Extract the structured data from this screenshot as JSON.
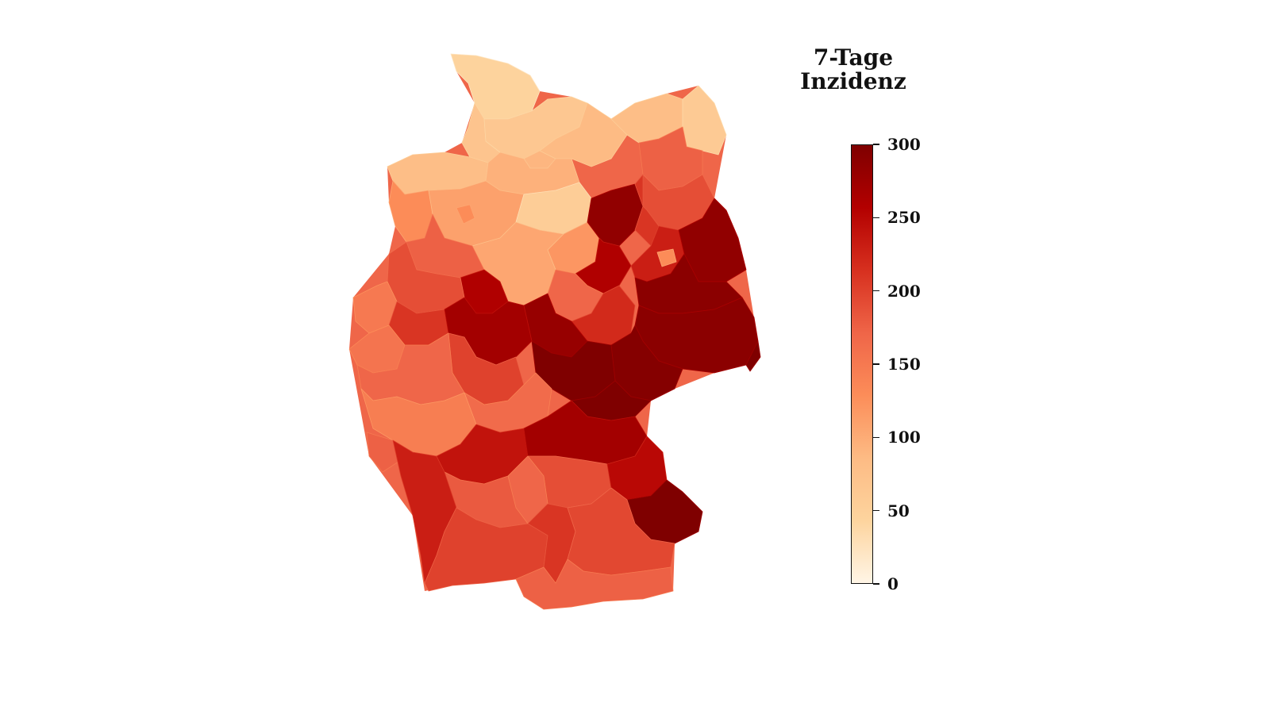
{
  "legend": {
    "title_line1": "7-Tage",
    "title_line2": "Inzidenz",
    "scale_min": 0,
    "scale_max": 300,
    "ticks": [
      {
        "value": 300,
        "label": "300"
      },
      {
        "value": 250,
        "label": "250"
      },
      {
        "value": 200,
        "label": "200"
      },
      {
        "value": 150,
        "label": "150"
      },
      {
        "value": 100,
        "label": "100"
      },
      {
        "value": 50,
        "label": "50"
      },
      {
        "value": 0,
        "label": "0"
      }
    ],
    "color_stops": [
      "#fff5e6",
      "#fdd49e",
      "#fdbb84",
      "#fc8d59",
      "#ef6548",
      "#d7301f",
      "#b30000",
      "#7f0000"
    ]
  },
  "map": {
    "regions": [
      {
        "id": "sh-north",
        "value": 45
      },
      {
        "id": "sh-west",
        "value": 70
      },
      {
        "id": "sh-east",
        "value": 65
      },
      {
        "id": "hamburg",
        "value": 90
      },
      {
        "id": "mv-west",
        "value": 85
      },
      {
        "id": "mv-central",
        "value": 80
      },
      {
        "id": "mv-east",
        "value": 60
      },
      {
        "id": "mv-south",
        "value": 175
      },
      {
        "id": "ni-coast",
        "value": 80
      },
      {
        "id": "ni-ems",
        "value": 130
      },
      {
        "id": "ni-north",
        "value": 95
      },
      {
        "id": "ni-central",
        "value": 110
      },
      {
        "id": "ni-heide",
        "value": 55
      },
      {
        "id": "ni-east",
        "value": 120
      },
      {
        "id": "ni-south",
        "value": 105
      },
      {
        "id": "hb",
        "value": 130
      },
      {
        "id": "st-altmark",
        "value": 285
      },
      {
        "id": "st-north",
        "value": 260
      },
      {
        "id": "st-central",
        "value": 170
      },
      {
        "id": "st-south",
        "value": 220
      },
      {
        "id": "bb-north",
        "value": 190
      },
      {
        "id": "bb-west",
        "value": 210
      },
      {
        "id": "bb-central",
        "value": 230
      },
      {
        "id": "bb-east",
        "value": 285
      },
      {
        "id": "bb-south",
        "value": 290
      },
      {
        "id": "berlin",
        "value": 130
      },
      {
        "id": "sn-north",
        "value": 290
      },
      {
        "id": "sn-east",
        "value": 300
      },
      {
        "id": "sn-west",
        "value": 295
      },
      {
        "id": "th-north",
        "value": 280
      },
      {
        "id": "th-central",
        "value": 300
      },
      {
        "id": "th-east",
        "value": 300
      },
      {
        "id": "nw-muenster",
        "value": 175
      },
      {
        "id": "nw-owl",
        "value": 260
      },
      {
        "id": "nw-ruhr",
        "value": 190
      },
      {
        "id": "nw-west",
        "value": 150
      },
      {
        "id": "nw-koeln",
        "value": 210
      },
      {
        "id": "nw-south",
        "value": 155
      },
      {
        "id": "he-north",
        "value": 270
      },
      {
        "id": "he-central",
        "value": 200
      },
      {
        "id": "he-south",
        "value": 165
      },
      {
        "id": "rp-north",
        "value": 170
      },
      {
        "id": "rp-south",
        "value": 145
      },
      {
        "id": "saarland",
        "value": 175
      },
      {
        "id": "bw-north",
        "value": 240
      },
      {
        "id": "bw-central",
        "value": 180
      },
      {
        "id": "bw-west",
        "value": 230
      },
      {
        "id": "bw-south",
        "value": 200
      },
      {
        "id": "by-franken-north",
        "value": 270
      },
      {
        "id": "by-franken-central",
        "value": 190
      },
      {
        "id": "by-franken-west",
        "value": 170
      },
      {
        "id": "by-oberpfalz",
        "value": 250
      },
      {
        "id": "by-niederbayern",
        "value": 300
      },
      {
        "id": "by-schwaben",
        "value": 210
      },
      {
        "id": "by-oberbayern",
        "value": 195
      },
      {
        "id": "by-alpen",
        "value": 175
      }
    ]
  }
}
